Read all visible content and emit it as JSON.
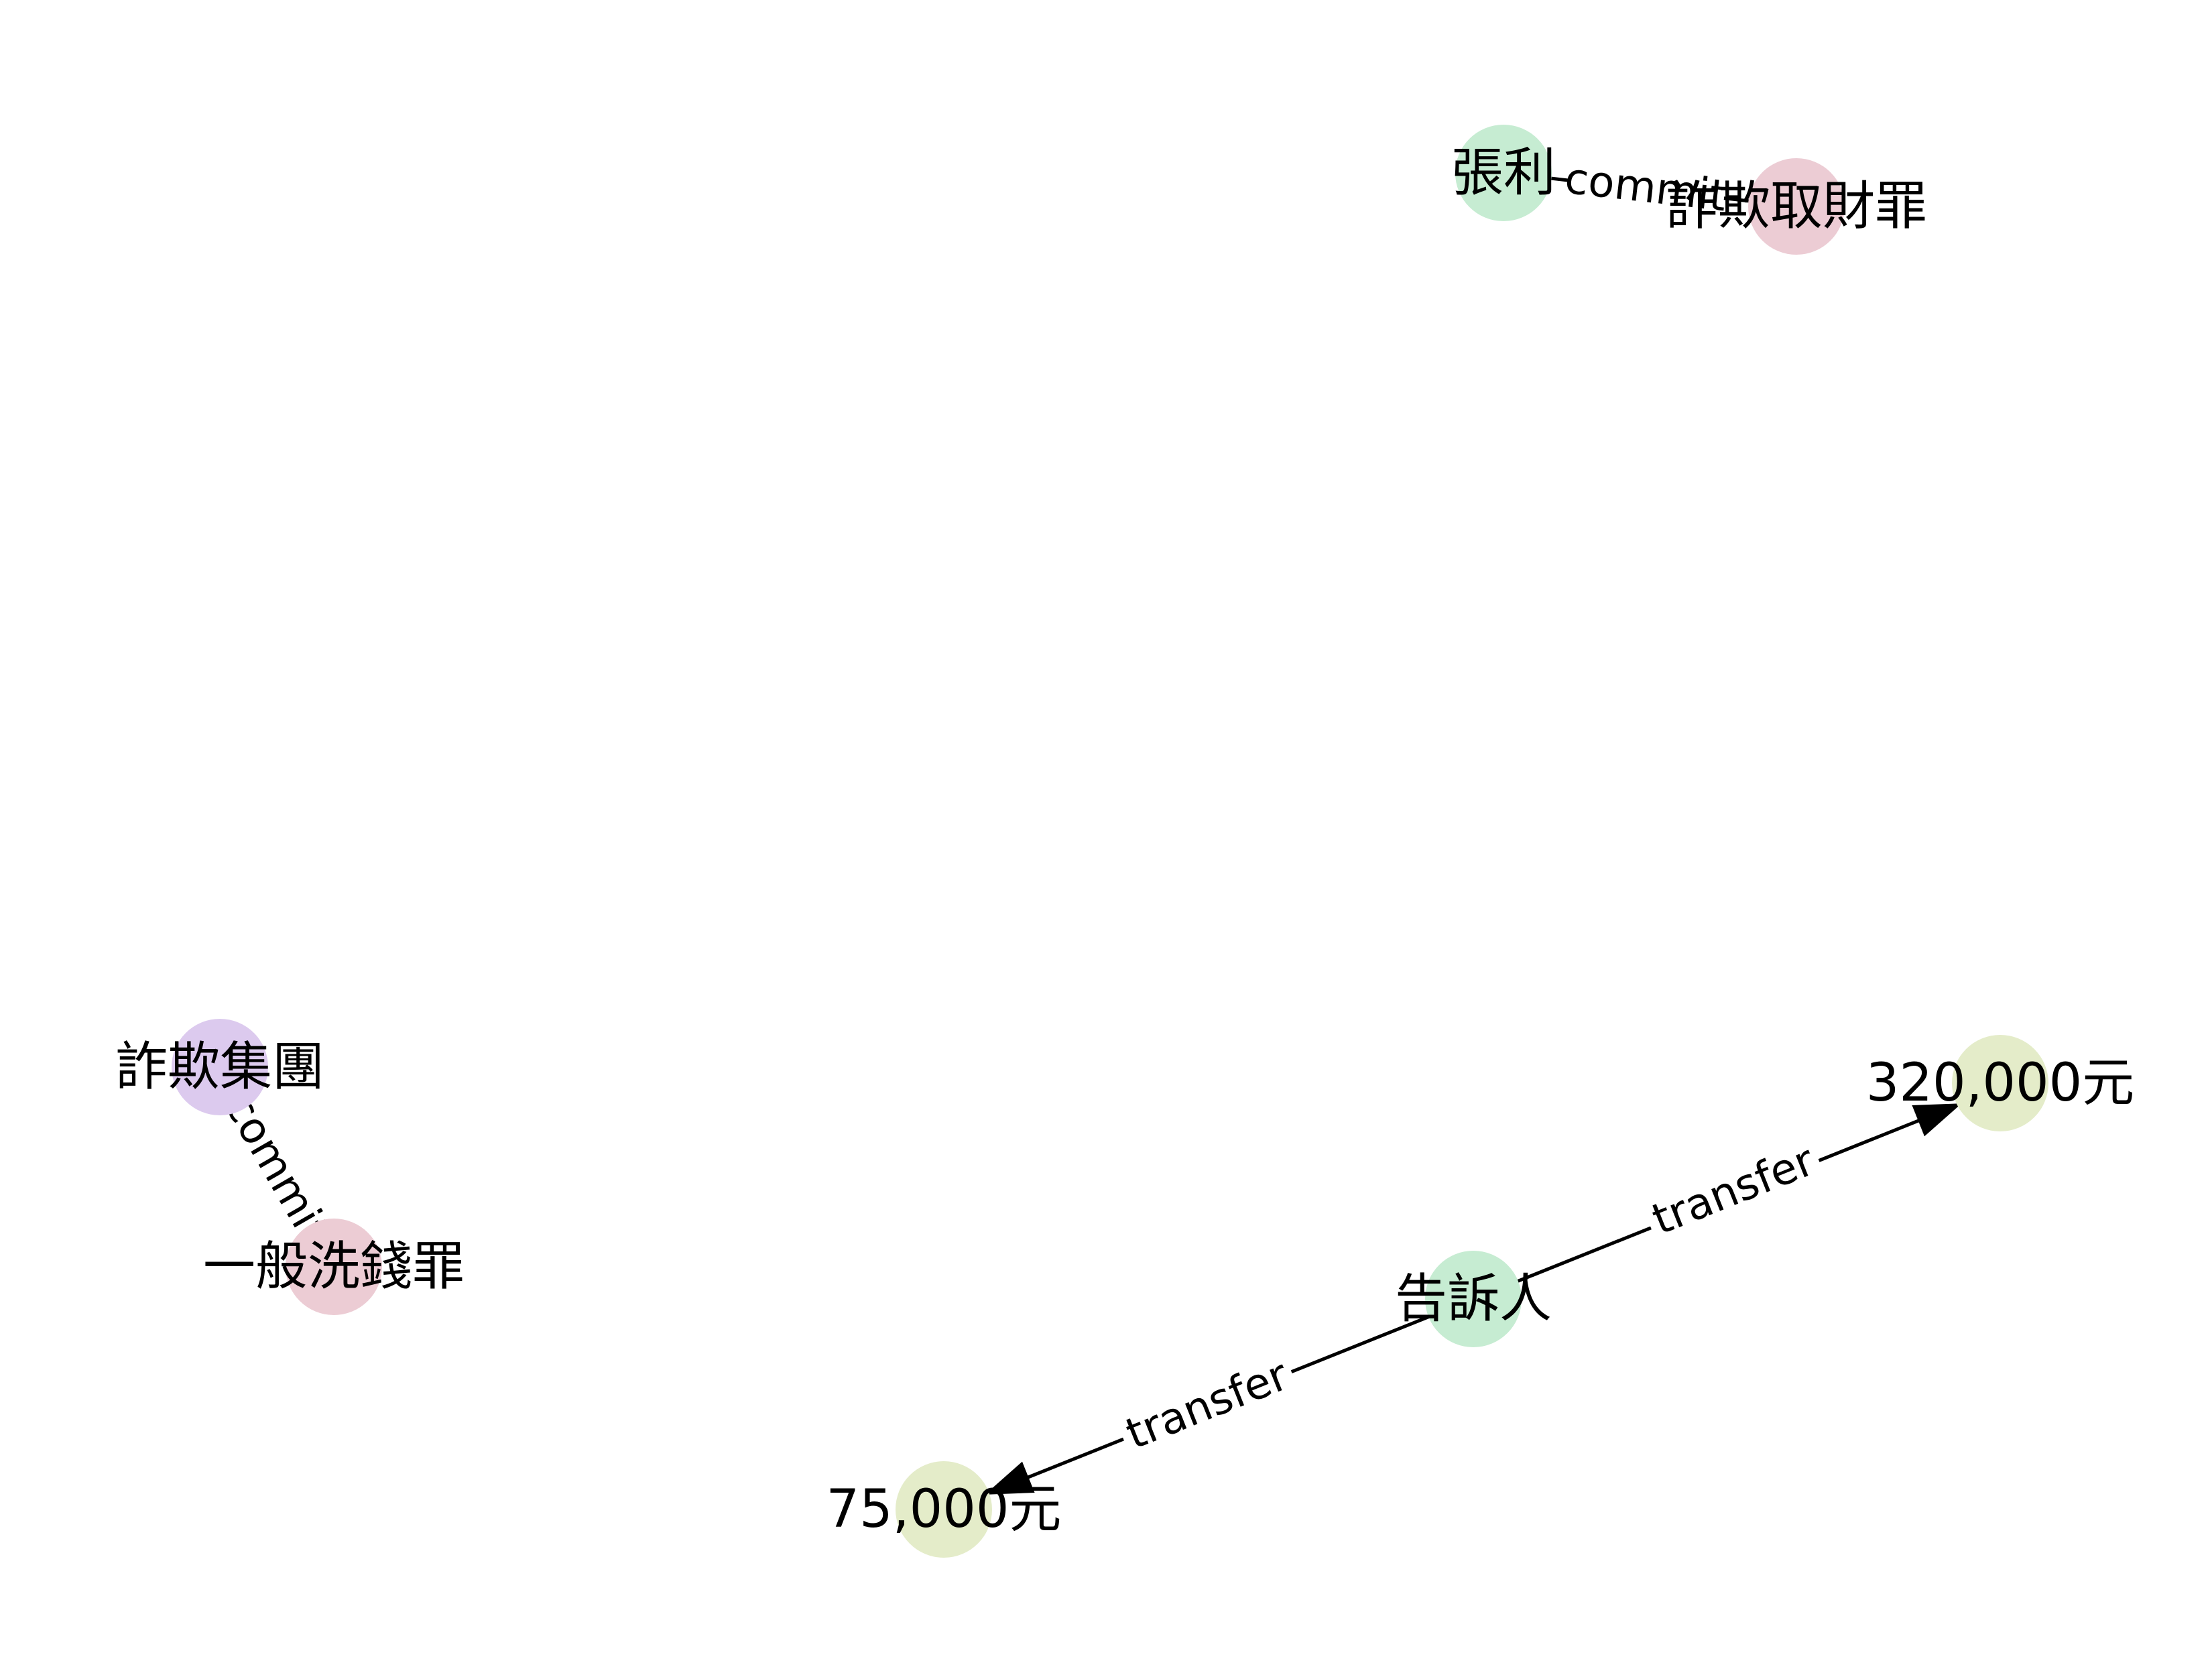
{
  "colors": {
    "person": "#c6ecd2",
    "crime": "#ecccd4",
    "group": "#dccaee",
    "amount": "#e4ecc9",
    "edge": "#000000",
    "label_background": "#ffffff"
  },
  "graph": {
    "nodes": [
      {
        "id": "zhangli",
        "label": "張利",
        "type": "person"
      },
      {
        "id": "fraud_crime",
        "label": "詐欺取財罪",
        "type": "crime"
      },
      {
        "id": "fraud_group",
        "label": "詐欺集團",
        "type": "group"
      },
      {
        "id": "money_laundering",
        "label": "一般洗錢罪",
        "type": "crime"
      },
      {
        "id": "complainant",
        "label": "告訴人",
        "type": "person"
      },
      {
        "id": "amount_320k",
        "label": "320,000元",
        "type": "amount"
      },
      {
        "id": "amount_75k",
        "label": "75,000元",
        "type": "amount"
      }
    ],
    "edges": [
      {
        "id": "e1",
        "source": "zhangli",
        "target": "fraud_crime",
        "label": "commit",
        "directed": false
      },
      {
        "id": "e2",
        "source": "fraud_group",
        "target": "money_laundering",
        "label": "commit",
        "directed": false
      },
      {
        "id": "e3",
        "source": "complainant",
        "target": "amount_320k",
        "label": "transfer",
        "directed": true
      },
      {
        "id": "e4",
        "source": "complainant",
        "target": "amount_75k",
        "label": "transfer",
        "directed": true
      }
    ]
  }
}
